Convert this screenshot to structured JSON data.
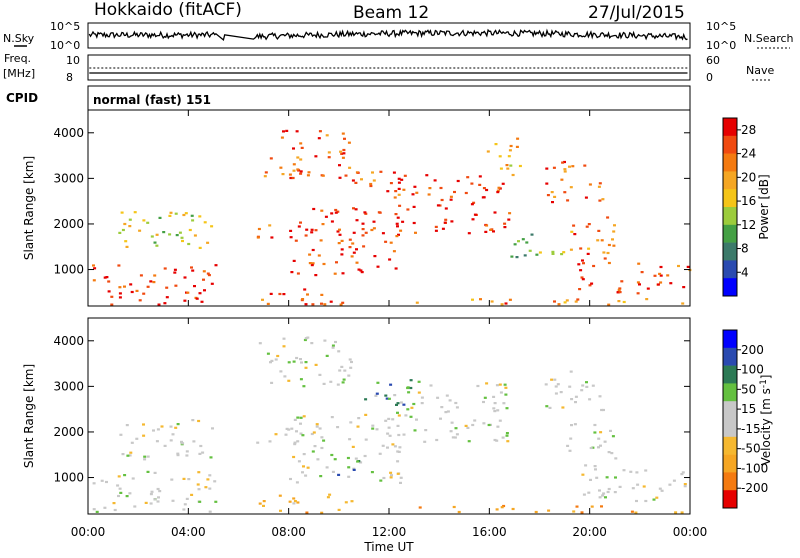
{
  "header": {
    "station": "Hokkaido (fitACF)",
    "beam": "Beam 12",
    "date": "27/Jul/2015"
  },
  "noise_panel": {
    "left_label": "N.Sky",
    "right_label": "N.Search",
    "left_ticks": [
      "10^5",
      "10^0"
    ],
    "right_ticks": [
      "10^5",
      "10^0"
    ]
  },
  "freq_panel": {
    "left_label_1": "Freq.",
    "left_label_2": "[MHz]",
    "right_label": "Nave",
    "left_ticks": [
      "10",
      "8"
    ],
    "right_ticks": [
      "60",
      "0"
    ]
  },
  "cpid": {
    "label": "CPID",
    "mode": "normal (fast) 151"
  },
  "colors": {
    "power_scale": [
      "#0000ff",
      "#2a4ab0",
      "#3c7a6a",
      "#44a044",
      "#9ccc3c",
      "#f5c518",
      "#f5a623",
      "#f47a10",
      "#f04a10",
      "#e60000"
    ],
    "velocity_scale": [
      "#e60000",
      "#f47a10",
      "#f5a623",
      "#f5b830",
      "#c8c8c8",
      "#c8c8c8",
      "#64c040",
      "#2c7a55",
      "#2a4ab0",
      "#0000ff"
    ]
  },
  "chart_data": [
    {
      "type": "heatmap",
      "name": "power",
      "xlabel": "Time UT",
      "ylabel": "Slant Range [km]",
      "x_ticks": [
        "00:00",
        "04:00",
        "08:00",
        "12:00",
        "16:00",
        "20:00",
        "00:00"
      ],
      "x_range_hours": [
        0,
        24
      ],
      "y_ticks": [
        1000,
        2000,
        3000,
        4000
      ],
      "ylim": [
        200,
        4500
      ],
      "colorbar": {
        "label": "Power [dB]",
        "ticks": [
          4,
          8,
          12,
          16,
          20,
          24,
          28
        ],
        "range": [
          0,
          30
        ]
      },
      "data_gaps_hours": [
        [
          5.1,
          5.35
        ],
        [
          5.45,
          6.55
        ]
      ],
      "regions": [
        {
          "t0": 0.1,
          "t1": 5.1,
          "r0": 250,
          "r1": 1150,
          "level": 0.9
        },
        {
          "t0": 1.2,
          "t1": 5.0,
          "r0": 1400,
          "r1": 2300,
          "level": 0.5
        },
        {
          "t0": 6.6,
          "t1": 10.5,
          "r0": 250,
          "r1": 650,
          "level": 0.85
        },
        {
          "t0": 6.7,
          "t1": 9.0,
          "r0": 1700,
          "r1": 2100,
          "level": 0.85
        },
        {
          "t0": 8.0,
          "t1": 12.5,
          "r0": 900,
          "r1": 2400,
          "level": 0.9
        },
        {
          "t0": 6.8,
          "t1": 10.5,
          "r0": 3000,
          "r1": 4100,
          "level": 0.8
        },
        {
          "t0": 10.5,
          "t1": 13.2,
          "r0": 2600,
          "r1": 3200,
          "level": 0.8
        },
        {
          "t0": 12.2,
          "t1": 16.8,
          "r0": 1800,
          "r1": 3100,
          "level": 0.92
        },
        {
          "t0": 13.0,
          "t1": 17.0,
          "r0": 250,
          "r1": 400,
          "level": 0.75
        },
        {
          "t0": 15.8,
          "t1": 17.2,
          "r0": 3000,
          "r1": 3900,
          "level": 0.6
        },
        {
          "t0": 16.8,
          "t1": 19.0,
          "r0": 1200,
          "r1": 1800,
          "level": 0.4
        },
        {
          "t0": 18.2,
          "t1": 20.6,
          "r0": 2500,
          "r1": 3400,
          "level": 0.8
        },
        {
          "t0": 19.0,
          "t1": 21.0,
          "r0": 1200,
          "r1": 2200,
          "level": 0.75
        },
        {
          "t0": 19.5,
          "t1": 24.0,
          "r0": 500,
          "r1": 1200,
          "level": 0.85
        },
        {
          "t0": 17.5,
          "t1": 24.0,
          "r0": 250,
          "r1": 400,
          "level": 0.7
        }
      ]
    },
    {
      "type": "heatmap",
      "name": "velocity",
      "xlabel": "Time UT",
      "ylabel": "Slant Range [km]",
      "x_ticks": [
        "00:00",
        "04:00",
        "08:00",
        "12:00",
        "16:00",
        "20:00",
        "00:00"
      ],
      "x_range_hours": [
        0,
        24
      ],
      "y_ticks": [
        1000,
        2000,
        3000,
        4000
      ],
      "ylim": [
        200,
        4500
      ],
      "colorbar": {
        "label": "Velocity [m s^-1]",
        "ticks": [
          200,
          100,
          50,
          15,
          -15,
          -50,
          -100,
          -200
        ],
        "range": [
          -250,
          250
        ]
      },
      "data_gaps_hours": [
        [
          5.1,
          5.35
        ],
        [
          5.45,
          6.55
        ]
      ],
      "regions": [
        {
          "t0": 0.1,
          "t1": 5.1,
          "r0": 250,
          "r1": 1150,
          "level": 0.5
        },
        {
          "t0": 1.2,
          "t1": 5.0,
          "r0": 1400,
          "r1": 2300,
          "level": 0.5
        },
        {
          "t0": 6.6,
          "t1": 10.5,
          "r0": 250,
          "r1": 650,
          "level": 0.3
        },
        {
          "t0": 6.7,
          "t1": 9.0,
          "r0": 1700,
          "r1": 2100,
          "level": 0.5
        },
        {
          "t0": 8.0,
          "t1": 12.5,
          "r0": 900,
          "r1": 2400,
          "level": 0.5
        },
        {
          "t0": 9.5,
          "t1": 11.0,
          "r0": 1000,
          "r1": 1500,
          "level": 0.7
        },
        {
          "t0": 6.8,
          "t1": 10.5,
          "r0": 3000,
          "r1": 4100,
          "level": 0.5
        },
        {
          "t0": 10.5,
          "t1": 13.2,
          "r0": 2600,
          "r1": 3200,
          "level": 0.7
        },
        {
          "t0": 12.2,
          "t1": 16.8,
          "r0": 1800,
          "r1": 3100,
          "level": 0.5
        },
        {
          "t0": 13.0,
          "t1": 17.0,
          "r0": 250,
          "r1": 400,
          "level": 0.25
        },
        {
          "t0": 18.2,
          "t1": 20.6,
          "r0": 2500,
          "r1": 3400,
          "level": 0.5
        },
        {
          "t0": 19.0,
          "t1": 21.0,
          "r0": 1200,
          "r1": 2200,
          "level": 0.5
        },
        {
          "t0": 19.5,
          "t1": 24.0,
          "r0": 500,
          "r1": 1200,
          "level": 0.5
        },
        {
          "t0": 17.5,
          "t1": 24.0,
          "r0": 250,
          "r1": 400,
          "level": 0.25
        }
      ]
    }
  ]
}
